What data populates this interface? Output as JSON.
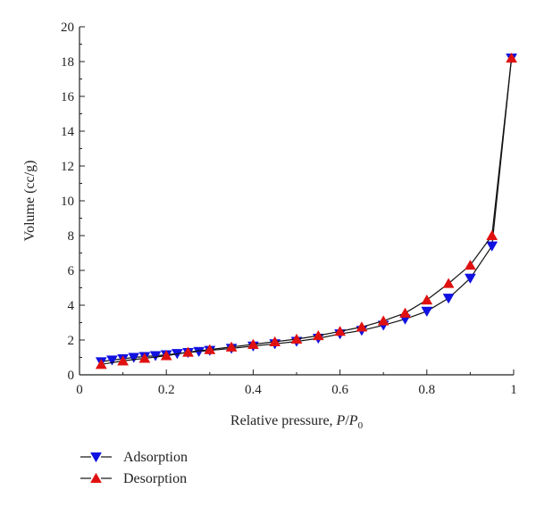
{
  "chart_data": {
    "type": "line",
    "xlabel_text": "Relative pressure, ",
    "xlabel_p": "P",
    "xlabel_slash": "/",
    "xlabel_p0": "P",
    "xlabel_sub": "0",
    "ylabel": "Volume (cc/g)",
    "xlim": [
      0,
      1
    ],
    "ylim": [
      0,
      20
    ],
    "x_ticks": [
      0,
      0.2,
      0.4,
      0.6,
      0.8,
      1
    ],
    "x_tick_labels": [
      "0",
      "0.2",
      "0.4",
      "0.6",
      "0.8",
      "1"
    ],
    "y_ticks": [
      0,
      2,
      4,
      6,
      8,
      10,
      12,
      14,
      16,
      18,
      20
    ],
    "y_tick_labels": [
      "0",
      "2",
      "4",
      "6",
      "8",
      "10",
      "12",
      "14",
      "16",
      "18",
      "20"
    ],
    "grid": false,
    "legend_position": "bottom-left, below plot",
    "series": [
      {
        "name": "Adsorption",
        "marker": "triangle-down",
        "color": "#1010e0",
        "x": [
          0.05,
          0.075,
          0.1,
          0.125,
          0.15,
          0.175,
          0.2,
          0.225,
          0.25,
          0.275,
          0.3,
          0.35,
          0.4,
          0.45,
          0.5,
          0.55,
          0.6,
          0.65,
          0.7,
          0.75,
          0.8,
          0.85,
          0.9,
          0.95,
          0.995
        ],
        "y": [
          0.75,
          0.85,
          0.92,
          1.0,
          1.05,
          1.1,
          1.15,
          1.22,
          1.28,
          1.34,
          1.4,
          1.52,
          1.65,
          1.78,
          1.92,
          2.1,
          2.35,
          2.55,
          2.85,
          3.2,
          3.65,
          4.4,
          5.55,
          7.4,
          18.2
        ]
      },
      {
        "name": "Desorption",
        "marker": "triangle-up",
        "color": "#e01010",
        "x": [
          0.05,
          0.1,
          0.15,
          0.2,
          0.25,
          0.3,
          0.35,
          0.4,
          0.45,
          0.5,
          0.55,
          0.6,
          0.65,
          0.7,
          0.75,
          0.8,
          0.85,
          0.9,
          0.95,
          0.995
        ],
        "y": [
          0.6,
          0.8,
          0.95,
          1.1,
          1.3,
          1.45,
          1.6,
          1.75,
          1.9,
          2.05,
          2.25,
          2.5,
          2.75,
          3.1,
          3.55,
          4.3,
          5.25,
          6.3,
          8.0,
          18.2
        ]
      }
    ]
  }
}
